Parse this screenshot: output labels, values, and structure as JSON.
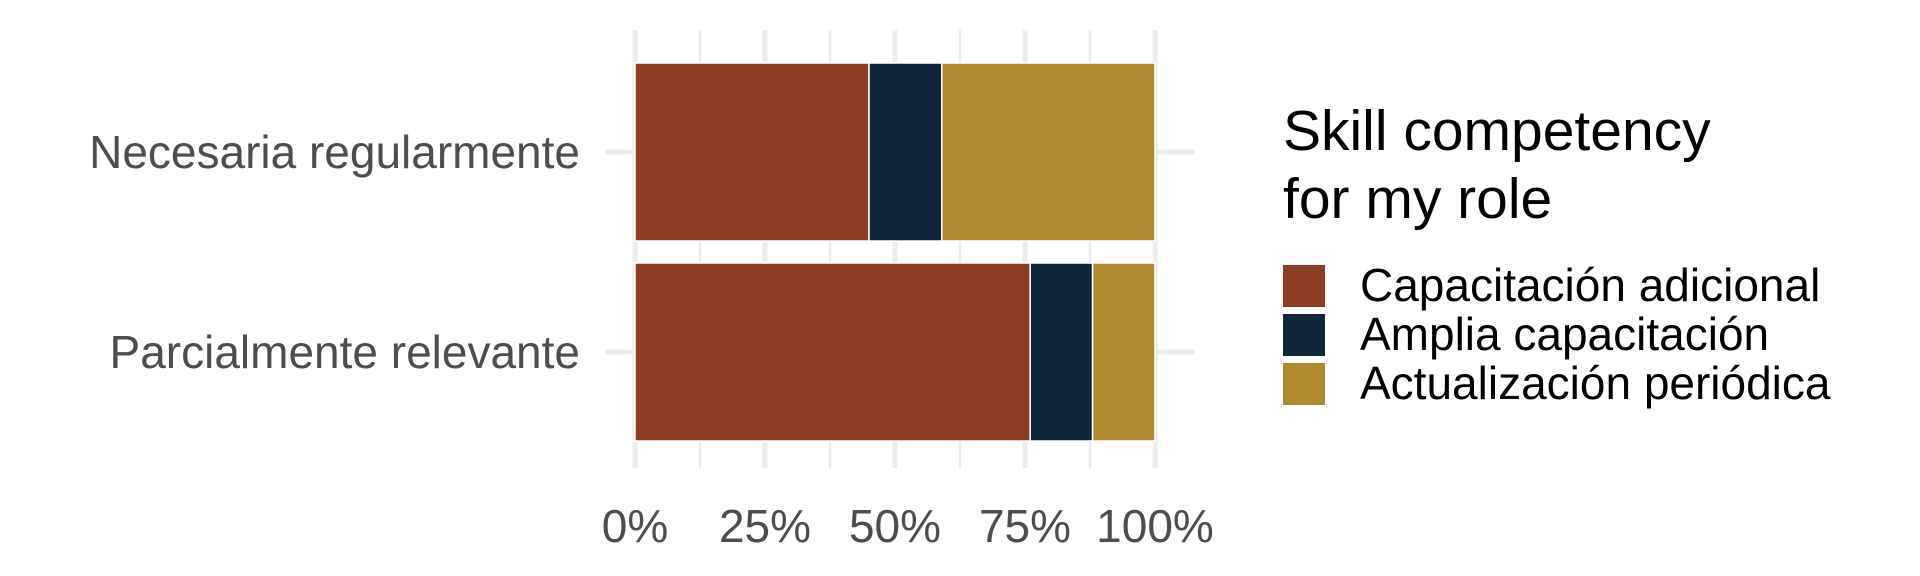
{
  "chart_data": {
    "type": "bar",
    "orientation": "horizontal",
    "stacked": true,
    "normalized": true,
    "categories": [
      "Necesaria regularmente",
      "Parcialmente relevante"
    ],
    "series": [
      {
        "name": "Capacitación adicional",
        "color": "#8B3E25",
        "values": [
          0.45,
          0.76
        ]
      },
      {
        "name": "Amplia capacitación",
        "color": "#10263A",
        "values": [
          0.14,
          0.12
        ]
      },
      {
        "name": "Actualización periódica",
        "color": "#AD8B2E",
        "values": [
          0.41,
          0.12
        ]
      }
    ],
    "xlim": [
      0,
      1
    ],
    "x_ticks": [
      0,
      0.25,
      0.5,
      0.75,
      1
    ],
    "x_tick_labels": [
      "0%",
      "25%",
      "50%",
      "75%",
      "100%"
    ],
    "title": "",
    "xlabel": "",
    "ylabel": "",
    "legend": {
      "title_lines": [
        "Skill competency",
        "for my role"
      ],
      "placement": "right"
    },
    "grid": true,
    "grid_color": "#EBEBEB"
  }
}
